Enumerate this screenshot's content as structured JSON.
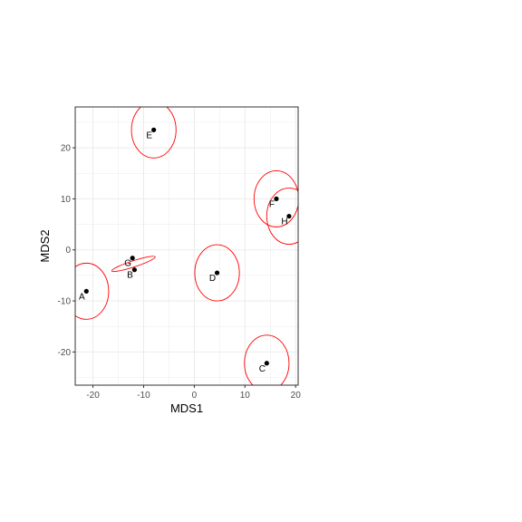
{
  "chart_data": {
    "type": "scatter",
    "title": "",
    "xlabel": "MDS1",
    "ylabel": "MDS2",
    "xlim": [
      -23.5,
      20.5
    ],
    "ylim": [
      -26.5,
      28
    ],
    "xticks": [
      -20,
      -10,
      0,
      10,
      20
    ],
    "yticks": [
      -20,
      -10,
      0,
      10,
      20
    ],
    "x_tick_labels": [
      "-20",
      "-10",
      "0",
      "10",
      "20"
    ],
    "y_tick_labels": [
      "-20",
      "-10",
      "0",
      "10",
      "20"
    ],
    "grid": true,
    "theme": "bw",
    "point_color": "#000000",
    "ellipse_color": "#ff0000",
    "points": [
      {
        "label": "A",
        "x": -21.3,
        "y": -8.1
      },
      {
        "label": "B",
        "x": -11.8,
        "y": -3.9
      },
      {
        "label": "C",
        "x": 14.3,
        "y": -22.2
      },
      {
        "label": "D",
        "x": 4.5,
        "y": -4.5
      },
      {
        "label": "E",
        "x": -8,
        "y": 23.5
      },
      {
        "label": "F",
        "x": 16.2,
        "y": 10
      },
      {
        "label": "G",
        "x": -12.2,
        "y": -1.6
      },
      {
        "label": "H",
        "x": 18.7,
        "y": 6.6
      }
    ],
    "ellipses": [
      {
        "group": "A",
        "cx": -21.3,
        "cy": -8.1,
        "rx": 4.4,
        "ry": 5.5,
        "angle": 0
      },
      {
        "group": "C",
        "cx": 14.3,
        "cy": -22.2,
        "rx": 4.4,
        "ry": 5.5,
        "angle": 0
      },
      {
        "group": "D",
        "cx": 4.5,
        "cy": -4.5,
        "rx": 4.4,
        "ry": 5.5,
        "angle": 0
      },
      {
        "group": "E",
        "cx": -8,
        "cy": 23.5,
        "rx": 4.4,
        "ry": 5.5,
        "angle": 0
      },
      {
        "group": "F",
        "cx": 16.2,
        "cy": 10,
        "rx": 4.4,
        "ry": 5.5,
        "angle": 0
      },
      {
        "group": "H",
        "cx": 18.7,
        "cy": 6.6,
        "rx": 4.4,
        "ry": 5.5,
        "angle": 0
      },
      {
        "group": "BG",
        "cx": -12,
        "cy": -2.75,
        "rx": 4.5,
        "ry": 0.6,
        "angle": 18
      }
    ]
  }
}
